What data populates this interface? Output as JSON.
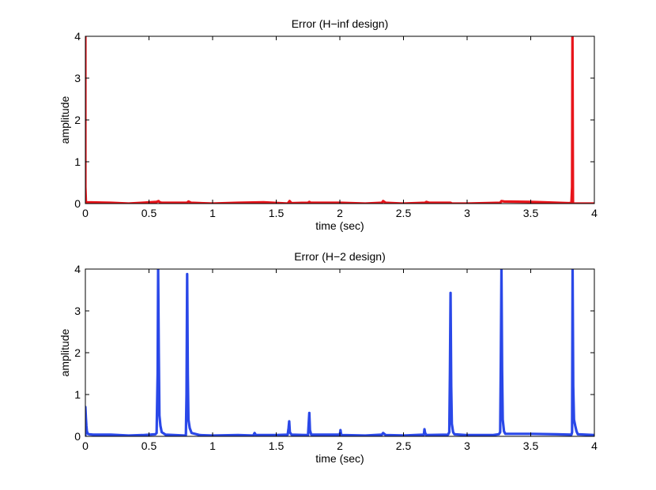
{
  "chart_data": [
    {
      "type": "line",
      "title": "Error (H−inf design)",
      "xlabel": "time (sec)",
      "ylabel": "amplitude",
      "xlim": [
        0,
        4
      ],
      "ylim": [
        0,
        4
      ],
      "xticks": [
        0,
        0.5,
        1,
        1.5,
        2,
        2.5,
        3,
        3.5,
        4
      ],
      "xtick_labels": [
        "0",
        "0.5",
        "1",
        "1.5",
        "2",
        "2.5",
        "3",
        "3.5",
        "4"
      ],
      "yticks": [
        0,
        1,
        2,
        3,
        4
      ],
      "ytick_labels": [
        "0",
        "1",
        "2",
        "3",
        "4"
      ],
      "grid": false,
      "series": [
        {
          "color": "#e8151b",
          "x": [
            0,
            0,
            0.004,
            0.012,
            0.2,
            0.34,
            0.45,
            0.56,
            0.575,
            0.585,
            0.6,
            0.8,
            0.81,
            0.83,
            1.0,
            1.2,
            1.4,
            1.59,
            1.605,
            1.62,
            1.75,
            1.76,
            1.77,
            2.0,
            2.2,
            2.33,
            2.34,
            2.36,
            2.5,
            2.67,
            2.68,
            2.7,
            2.87,
            2.88,
            3.0,
            3.26,
            3.27,
            3.29,
            3.5,
            3.6,
            3.8,
            3.82,
            3.825,
            3.828,
            3.832,
            3.84,
            3.9,
            4.0
          ],
          "y": [
            4,
            0.4,
            0.05,
            0.03,
            0.02,
            0.0,
            0.02,
            0.04,
            0.06,
            0.03,
            0.02,
            0.02,
            0.05,
            0.02,
            0.0,
            0.02,
            0.03,
            0.0,
            0.06,
            0.01,
            0.02,
            0.04,
            0.02,
            0.02,
            0.0,
            0.02,
            0.06,
            0.02,
            0.0,
            0.02,
            0.04,
            0.02,
            0.02,
            0.0,
            0.0,
            0.02,
            0.06,
            0.05,
            0.04,
            0.03,
            0.01,
            0.02,
            0.4,
            4,
            0.02,
            0.0,
            0.0,
            0.0
          ]
        }
      ]
    },
    {
      "type": "line",
      "title": "Error (H−2 design)",
      "xlabel": "time (sec)",
      "ylabel": "amplitude",
      "xlim": [
        0,
        4
      ],
      "ylim": [
        0,
        4
      ],
      "xticks": [
        0,
        0.5,
        1,
        1.5,
        2,
        2.5,
        3,
        3.5,
        4
      ],
      "xtick_labels": [
        "0",
        "0.5",
        "1",
        "1.5",
        "2",
        "2.5",
        "3",
        "3.5",
        "4"
      ],
      "yticks": [
        0,
        1,
        2,
        3,
        4
      ],
      "ytick_labels": [
        "0",
        "1",
        "2",
        "3",
        "4"
      ],
      "grid": false,
      "series": [
        {
          "color": "#2a48e8",
          "x": [
            0,
            0.0,
            0.004,
            0.008,
            0.012,
            0.02,
            0.03,
            0.06,
            0.2,
            0.34,
            0.45,
            0.55,
            0.56,
            0.568,
            0.572,
            0.577,
            0.582,
            0.59,
            0.6,
            0.63,
            0.78,
            0.79,
            0.795,
            0.8,
            0.805,
            0.81,
            0.82,
            0.835,
            0.9,
            1.0,
            1.2,
            1.32,
            1.33,
            1.34,
            1.5,
            1.59,
            1.597,
            1.602,
            1.607,
            1.62,
            1.75,
            1.755,
            1.76,
            1.765,
            1.775,
            1.9,
            2.0,
            2.005,
            2.01,
            2.02,
            2.2,
            2.33,
            2.34,
            2.36,
            2.5,
            2.66,
            2.665,
            2.67,
            2.68,
            2.85,
            2.86,
            2.865,
            2.87,
            2.875,
            2.88,
            2.89,
            2.9,
            3.0,
            3.2,
            3.25,
            3.26,
            3.265,
            3.27,
            3.275,
            3.28,
            3.29,
            3.3,
            3.5,
            3.7,
            3.82,
            3.825,
            3.829,
            3.834,
            3.84,
            3.85,
            3.86,
            3.87,
            4.0
          ],
          "y": [
            0.02,
            0.7,
            0.45,
            0.25,
            0.12,
            0.06,
            0.05,
            0.04,
            0.04,
            0.02,
            0.03,
            0.05,
            0.08,
            1.5,
            4,
            2.0,
            0.5,
            0.25,
            0.1,
            0.04,
            0.02,
            0.03,
            1.0,
            3.88,
            1.5,
            0.4,
            0.2,
            0.08,
            0.03,
            0.02,
            0.03,
            0.02,
            0.08,
            0.03,
            0.03,
            0.04,
            0.2,
            0.36,
            0.1,
            0.04,
            0.03,
            0.3,
            0.56,
            0.15,
            0.04,
            0.04,
            0.04,
            0.15,
            0.04,
            0.03,
            0.02,
            0.04,
            0.08,
            0.03,
            0.02,
            0.04,
            0.17,
            0.08,
            0.03,
            0.04,
            0.1,
            1.5,
            3.43,
            1.2,
            0.3,
            0.1,
            0.05,
            0.03,
            0.03,
            0.05,
            0.1,
            1.8,
            4,
            1.6,
            0.4,
            0.12,
            0.06,
            0.06,
            0.05,
            0.04,
            0.1,
            4,
            1.2,
            0.4,
            0.25,
            0.12,
            0.05,
            0.03
          ]
        }
      ]
    }
  ]
}
